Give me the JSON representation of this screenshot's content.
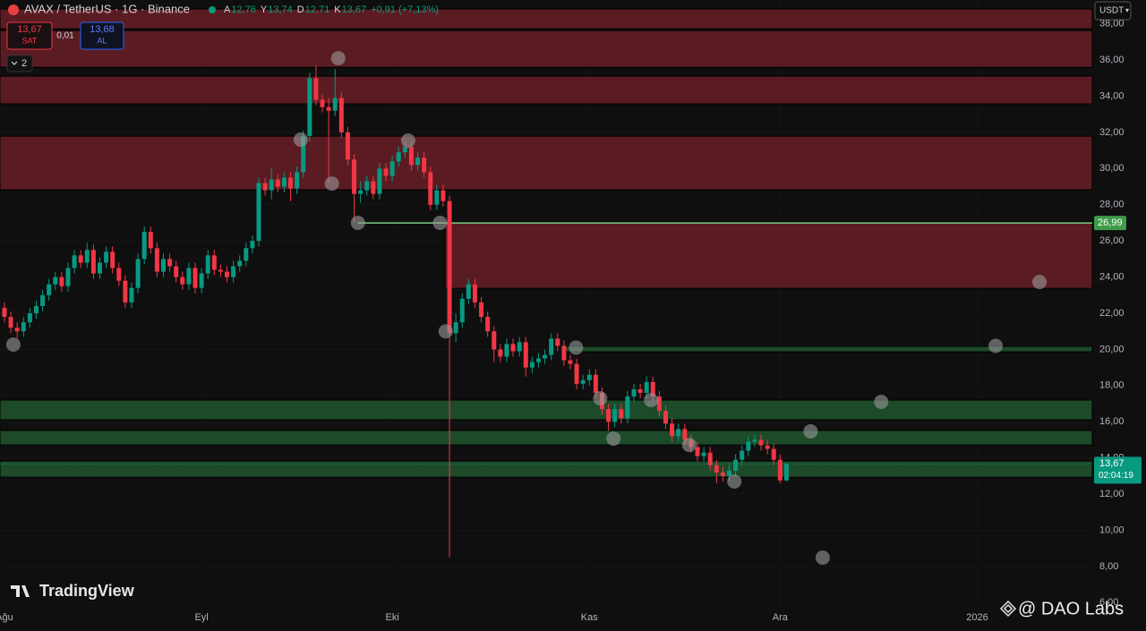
{
  "header": {
    "symbol": "AVAX / TetherUS · 1G · Binance",
    "ohlc": [
      {
        "key": "A",
        "value": "12,76"
      },
      {
        "key": "Y",
        "value": "13,74"
      },
      {
        "key": "D",
        "value": "12,71"
      },
      {
        "key": "K",
        "value": "13,67"
      }
    ],
    "change": "+0,91 (+7,13%)"
  },
  "trading_panel": {
    "sell_price": "13,67",
    "sell_label": "SAT",
    "spread": "0,01",
    "buy_price": "13,68",
    "buy_label": "AL",
    "indicator_count": "2"
  },
  "watermark": "TradingView",
  "credit": "@ DAO Labs",
  "chart_data": {
    "type": "candlestick",
    "open": [
      22.3,
      21.8,
      21.2,
      21.0,
      21.5,
      22.0,
      22.4,
      23.0,
      23.6,
      24.0,
      23.5,
      24.5,
      25.2,
      24.8,
      25.5,
      24.2,
      24.8,
      25.4,
      24.5,
      23.8,
      22.6,
      23.4,
      25.0,
      26.5,
      25.6,
      24.3,
      25.0,
      24.6,
      24.0,
      23.6,
      24.5,
      23.4,
      24.2,
      25.2,
      24.4,
      24.3,
      24.0,
      24.6,
      24.9,
      25.6,
      26.0,
      29.2,
      28.8,
      29.4,
      29.0,
      29.5,
      28.9,
      29.8,
      31.8,
      35.0,
      33.8,
      33.4,
      33.2,
      33.9,
      32.0,
      30.5,
      28.6,
      28.8,
      29.3,
      28.6,
      30.0,
      29.6,
      30.4,
      30.9,
      31.2,
      30.2,
      30.6,
      29.8,
      28.0,
      28.8,
      28.2,
      20.9,
      21.5,
      22.8,
      23.6,
      22.6,
      21.8,
      21.0,
      20.0,
      19.6,
      20.3,
      19.9,
      20.4,
      19.0,
      19.3,
      19.5,
      19.7,
      20.6,
      20.2,
      19.4,
      19.2,
      18.1,
      18.3,
      18.6,
      17.6,
      16.7,
      16.0,
      16.7,
      16.2,
      17.4,
      17.8,
      17.6,
      18.2,
      17.4,
      16.6,
      15.9,
      15.2,
      15.6,
      15.0,
      14.6,
      14.1,
      14.3,
      13.6,
      13.2,
      13.0,
      13.3,
      13.9,
      14.4,
      14.9,
      15.0,
      14.7,
      14.5,
      13.9,
      12.76
    ],
    "high": [
      22.6,
      22.1,
      21.5,
      21.8,
      22.3,
      22.7,
      23.3,
      23.9,
      24.3,
      24.3,
      24.8,
      25.5,
      25.5,
      25.9,
      25.8,
      25.1,
      25.7,
      25.7,
      24.8,
      24.1,
      23.7,
      25.3,
      26.8,
      26.8,
      25.9,
      25.3,
      25.3,
      24.9,
      24.3,
      24.8,
      24.8,
      24.5,
      25.5,
      25.5,
      24.7,
      24.6,
      24.9,
      25.2,
      25.9,
      26.3,
      29.5,
      29.5,
      30.0,
      29.7,
      29.8,
      29.8,
      30.1,
      32.1,
      35.3,
      35.7,
      34.1,
      33.9,
      35.5,
      34.2,
      32.3,
      30.8,
      29.3,
      29.6,
      29.6,
      30.3,
      30.3,
      30.7,
      31.2,
      31.5,
      31.5,
      30.9,
      30.9,
      30.1,
      29.1,
      29.1,
      28.5,
      22.0,
      23.1,
      23.9,
      23.9,
      22.9,
      22.1,
      21.3,
      20.3,
      20.6,
      20.6,
      20.7,
      20.7,
      19.6,
      19.8,
      20.0,
      20.9,
      20.9,
      20.5,
      19.7,
      19.5,
      18.6,
      18.9,
      18.9,
      17.9,
      17.0,
      17.0,
      17.0,
      17.7,
      18.1,
      18.1,
      18.5,
      18.5,
      17.7,
      16.9,
      16.2,
      15.9,
      15.9,
      15.3,
      14.9,
      14.6,
      14.6,
      13.9,
      13.5,
      13.6,
      14.2,
      14.7,
      15.2,
      15.3,
      15.3,
      15.0,
      14.8,
      14.2,
      13.74
    ],
    "low": [
      21.5,
      20.9,
      20.6,
      20.7,
      21.2,
      21.7,
      22.1,
      22.7,
      23.3,
      23.2,
      23.2,
      24.2,
      24.5,
      24.5,
      23.9,
      23.9,
      24.5,
      24.2,
      23.5,
      22.3,
      22.3,
      23.1,
      24.7,
      25.3,
      24.0,
      24.0,
      24.3,
      23.7,
      23.3,
      23.3,
      23.1,
      23.1,
      23.9,
      24.1,
      24.0,
      23.7,
      23.7,
      24.3,
      24.6,
      25.3,
      25.7,
      28.5,
      28.3,
      28.7,
      28.7,
      28.2,
      28.6,
      29.5,
      31.5,
      33.5,
      33.1,
      29.2,
      32.9,
      31.7,
      30.2,
      27.0,
      28.1,
      28.5,
      28.3,
      28.3,
      29.3,
      29.3,
      30.1,
      30.6,
      29.9,
      29.9,
      29.5,
      27.7,
      27.7,
      27.9,
      8.5,
      20.4,
      21.2,
      22.5,
      22.3,
      21.5,
      20.7,
      19.3,
      19.3,
      19.3,
      19.6,
      19.6,
      18.5,
      18.7,
      19.0,
      19.2,
      19.4,
      19.9,
      19.1,
      18.9,
      17.8,
      17.8,
      18.0,
      17.3,
      16.4,
      15.5,
      15.7,
      15.9,
      15.9,
      17.1,
      17.3,
      17.3,
      17.1,
      16.3,
      15.6,
      14.9,
      14.9,
      14.7,
      14.3,
      13.8,
      13.8,
      13.3,
      12.6,
      12.7,
      12.7,
      13.0,
      13.6,
      14.1,
      14.6,
      14.4,
      14.2,
      13.6,
      12.6,
      12.71
    ],
    "close": [
      21.8,
      21.2,
      21.0,
      21.5,
      22.0,
      22.4,
      23.0,
      23.6,
      24.0,
      23.5,
      24.5,
      25.2,
      24.8,
      25.5,
      24.2,
      24.8,
      25.4,
      24.5,
      23.8,
      22.6,
      23.4,
      25.0,
      26.5,
      25.6,
      24.3,
      25.0,
      24.6,
      24.0,
      23.6,
      24.5,
      23.4,
      24.2,
      25.2,
      24.4,
      24.3,
      24.0,
      24.6,
      24.9,
      25.6,
      26.0,
      29.2,
      28.8,
      29.4,
      29.0,
      29.5,
      28.9,
      29.8,
      31.8,
      35.0,
      33.8,
      33.4,
      33.2,
      33.9,
      32.0,
      30.5,
      28.6,
      28.8,
      29.3,
      28.6,
      30.0,
      29.6,
      30.4,
      30.9,
      31.2,
      30.2,
      30.6,
      29.8,
      28.0,
      28.8,
      28.2,
      20.9,
      21.5,
      22.8,
      23.6,
      22.6,
      21.8,
      21.0,
      20.0,
      19.6,
      20.3,
      19.9,
      20.4,
      19.0,
      19.3,
      19.5,
      19.7,
      20.6,
      20.2,
      19.4,
      19.2,
      18.1,
      18.3,
      18.6,
      17.6,
      16.7,
      16.0,
      16.7,
      16.2,
      17.4,
      17.8,
      17.6,
      18.2,
      17.4,
      16.6,
      15.9,
      15.2,
      15.6,
      15.0,
      14.6,
      14.1,
      14.3,
      13.6,
      13.2,
      13.0,
      13.3,
      13.9,
      14.4,
      14.9,
      15.0,
      14.7,
      14.5,
      13.9,
      12.76,
      13.67
    ],
    "up_color": "#089981",
    "down_color": "#f23645",
    "xlim": [
      -0.7,
      171.1
    ],
    "xticks": [
      {
        "value": 0,
        "label": "Ağu"
      },
      {
        "value": 31,
        "label": "Eyl"
      },
      {
        "value": 61,
        "label": "Eki"
      },
      {
        "value": 92,
        "label": "Kas"
      },
      {
        "value": 122,
        "label": "Ara"
      },
      {
        "value": 153,
        "label": "2026"
      }
    ],
    "ylim": [
      5.67,
      39.32
    ],
    "yticks": [
      {
        "value": 6,
        "label": "6,00"
      },
      {
        "value": 8,
        "label": "8,00"
      },
      {
        "value": 10,
        "label": "10,00"
      },
      {
        "value": 12,
        "label": "12,00"
      },
      {
        "value": 14,
        "label": "14,00"
      },
      {
        "value": 16,
        "label": "16,00"
      },
      {
        "value": 18,
        "label": "18,00"
      },
      {
        "value": 20,
        "label": "20,00"
      },
      {
        "value": 22,
        "label": "22,00"
      },
      {
        "value": 24,
        "label": "24,00"
      },
      {
        "value": 26,
        "label": "26,00"
      },
      {
        "value": 28,
        "label": "28,00"
      },
      {
        "value": 30,
        "label": "30,00"
      },
      {
        "value": 32,
        "label": "32,00"
      },
      {
        "value": 34,
        "label": "34,00"
      },
      {
        "value": 36,
        "label": "36,00"
      },
      {
        "value": 38,
        "label": "38,00"
      }
    ],
    "grid": true,
    "zones": [
      {
        "low": 37.73,
        "high": 38.82,
        "color": "#5a1c22"
      },
      {
        "low": 35.6,
        "high": 37.63,
        "color": "#5a1c22"
      },
      {
        "low": 33.58,
        "high": 35.11,
        "color": "#5a1c22"
      },
      {
        "low": 28.83,
        "high": 31.79,
        "color": "#5a1c22"
      },
      {
        "low": 23.38,
        "high": 27.04,
        "color": "#5a1c22",
        "start": 69.3
      },
      {
        "low": 19.87,
        "high": 20.17,
        "color": "#1d4a29",
        "start": 87.7
      },
      {
        "low": 16.11,
        "high": 17.2,
        "color": "#1d4a29"
      },
      {
        "low": 14.72,
        "high": 15.52,
        "color": "#1d4a29"
      },
      {
        "low": 12.94,
        "high": 13.83,
        "color": "#1d4a29"
      }
    ],
    "levels": [
      {
        "value": 26.99,
        "label": "26,99",
        "start": 55.6,
        "color": "#7ccf83"
      }
    ],
    "markers": {
      "x": [
        1.4,
        52.5,
        46.6,
        51.5,
        55.6,
        63.5,
        68.5,
        69.4,
        89.9,
        93.7,
        101.7,
        95.8,
        107.7,
        114.8,
        126.8,
        137.9,
        155.9,
        162.8,
        128.7
      ],
      "y": [
        20.27,
        36.1,
        31.6,
        29.17,
        27.0,
        31.55,
        27.0,
        21.0,
        20.1,
        17.3,
        17.2,
        15.07,
        14.72,
        12.7,
        15.47,
        17.1,
        20.2,
        23.73,
        8.49
      ],
      "color": "#9a9a9a"
    },
    "last_price": {
      "value": 13.67,
      "label": "13,67",
      "timer": "02:04:19"
    },
    "currency": "USDT"
  }
}
